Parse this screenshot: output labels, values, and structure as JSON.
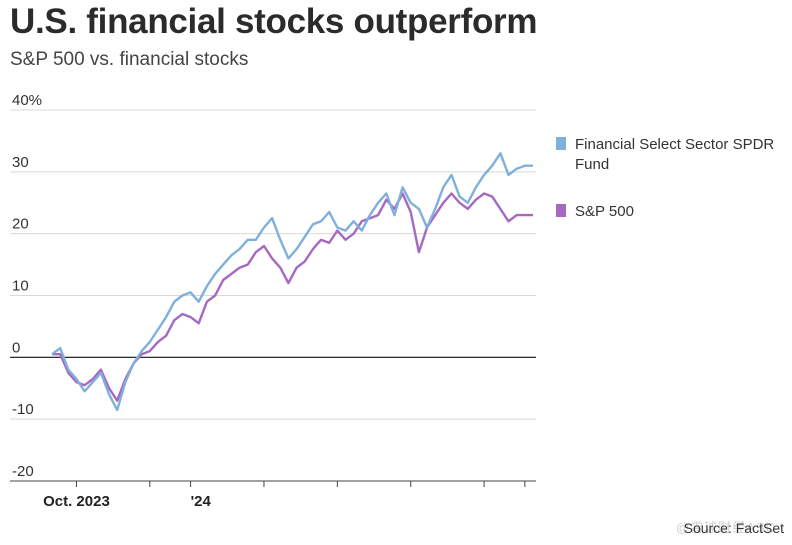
{
  "header": {
    "title": "U.S. financial stocks outperform",
    "subtitle": "S&P 500 vs. financial stocks"
  },
  "footer": {
    "source": "Source: FactSet",
    "watermark": "@雪球财经ASC"
  },
  "colors": {
    "financial": "#7fb0dc",
    "sp500": "#a569c2",
    "grid": "#d9d9d9",
    "zero_line": "#111111"
  },
  "chart_data": {
    "type": "line",
    "title": "U.S. financial stocks outperform",
    "subtitle": "S&P 500 vs. financial stocks",
    "xlabel": "",
    "ylabel": "",
    "ylim": [
      -20,
      40
    ],
    "xlim": [
      0,
      59
    ],
    "y_ticks": [
      {
        "value": -20,
        "label": "-20"
      },
      {
        "value": -10,
        "label": "-10"
      },
      {
        "value": 0,
        "label": "0"
      },
      {
        "value": 10,
        "label": "10"
      },
      {
        "value": 20,
        "label": "20"
      },
      {
        "value": 30,
        "label": "30"
      },
      {
        "value": 40,
        "label": "40%"
      }
    ],
    "x_tick_labels": [
      {
        "x": 3,
        "label": "Oct. 2023"
      },
      {
        "x": 17,
        "label": "'24"
      }
    ],
    "x_tick_marks": [
      3,
      12,
      17,
      26,
      35,
      44,
      53,
      58
    ],
    "grid": true,
    "legend_position": "right",
    "x": [
      0,
      1,
      2,
      3,
      4,
      5,
      6,
      7,
      8,
      9,
      10,
      11,
      12,
      13,
      14,
      15,
      16,
      17,
      18,
      19,
      20,
      21,
      22,
      23,
      24,
      25,
      26,
      27,
      28,
      29,
      30,
      31,
      32,
      33,
      34,
      35,
      36,
      37,
      38,
      39,
      40,
      41,
      42,
      43,
      44,
      45,
      46,
      47,
      48,
      49,
      50,
      51,
      52,
      53,
      54,
      55,
      56,
      57,
      58,
      59
    ],
    "series": [
      {
        "name": "Financial Select Sector SPDR Fund",
        "values": [
          0.5,
          1.5,
          -2.0,
          -3.5,
          -5.5,
          -4.0,
          -2.5,
          -6.0,
          -8.5,
          -4.0,
          -1.0,
          1.0,
          2.5,
          4.5,
          6.5,
          9.0,
          10.0,
          10.5,
          9.0,
          11.5,
          13.5,
          15.0,
          16.5,
          17.5,
          19.0,
          19.0,
          21.0,
          22.5,
          19.0,
          16.0,
          17.5,
          19.5,
          21.5,
          22.0,
          23.5,
          21.0,
          20.5,
          22.0,
          20.5,
          23.0,
          25.0,
          26.5,
          23.0,
          27.5,
          25.0,
          24.0,
          21.0,
          24.0,
          27.5,
          29.5,
          26.0,
          25.0,
          27.5,
          29.5,
          31.0,
          33.0,
          29.5,
          30.5,
          31.0,
          31.0
        ]
      },
      {
        "name": "S&P 500",
        "values": [
          0.5,
          0.5,
          -2.5,
          -4.0,
          -4.5,
          -3.5,
          -2.0,
          -5.0,
          -7.0,
          -3.5,
          -1.0,
          0.5,
          1.0,
          2.5,
          3.5,
          6.0,
          7.0,
          6.5,
          5.5,
          9.0,
          10.0,
          12.5,
          13.5,
          14.5,
          15.0,
          17.0,
          18.0,
          16.0,
          14.5,
          12.0,
          14.5,
          15.5,
          17.5,
          19.0,
          18.5,
          20.5,
          19.0,
          20.0,
          22.0,
          22.5,
          23.0,
          25.5,
          24.0,
          26.5,
          23.5,
          17.0,
          21.0,
          23.0,
          25.0,
          26.5,
          25.0,
          24.0,
          25.5,
          26.5,
          26.0,
          24.0,
          22.0,
          23.0,
          23.0,
          23.0
        ]
      }
    ]
  }
}
